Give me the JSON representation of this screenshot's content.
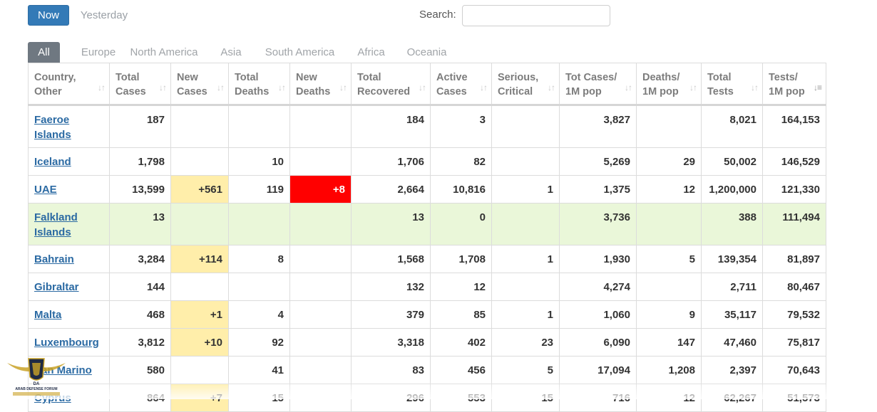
{
  "toolbar": {
    "now_label": "Now",
    "yesterday_label": "Yesterday",
    "search_label": "Search:",
    "search_value": ""
  },
  "tabs": [
    {
      "label": "All",
      "active": true
    },
    {
      "label": "Europe"
    },
    {
      "label": "North America"
    },
    {
      "label": "Asia"
    },
    {
      "label": "South America"
    },
    {
      "label": "Africa"
    },
    {
      "label": "Oceania"
    }
  ],
  "table": {
    "columns": [
      [
        "Country,",
        "Other"
      ],
      [
        "Total",
        "Cases"
      ],
      [
        "New",
        "Cases"
      ],
      [
        "Total",
        "Deaths"
      ],
      [
        "New",
        "Deaths"
      ],
      [
        "Total",
        "Recovered"
      ],
      [
        "Active",
        "Cases"
      ],
      [
        "Serious,",
        "Critical"
      ],
      [
        "Tot Cases/",
        "1M pop"
      ],
      [
        "Deaths/",
        "1M pop"
      ],
      [
        "Total",
        "Tests"
      ],
      [
        "Tests/",
        "1M pop"
      ]
    ],
    "sorted_column": 11,
    "rows": [
      {
        "country": "Faeroe Islands",
        "total_cases": "187",
        "new_cases": "",
        "total_deaths": "",
        "new_deaths": "",
        "total_recovered": "184",
        "active_cases": "3",
        "serious_critical": "",
        "tot_cases_per_1m": "3,827",
        "deaths_per_1m": "",
        "total_tests": "8,021",
        "tests_per_1m": "164,153"
      },
      {
        "country": "Iceland",
        "total_cases": "1,798",
        "new_cases": "",
        "total_deaths": "10",
        "new_deaths": "",
        "total_recovered": "1,706",
        "active_cases": "82",
        "serious_critical": "",
        "tot_cases_per_1m": "5,269",
        "deaths_per_1m": "29",
        "total_tests": "50,002",
        "tests_per_1m": "146,529"
      },
      {
        "country": "UAE",
        "total_cases": "13,599",
        "new_cases": "+561",
        "total_deaths": "119",
        "new_deaths": "+8",
        "total_recovered": "2,664",
        "active_cases": "10,816",
        "serious_critical": "1",
        "tot_cases_per_1m": "1,375",
        "deaths_per_1m": "12",
        "total_tests": "1,200,000",
        "tests_per_1m": "121,330"
      },
      {
        "country": "Falkland Islands",
        "highlight": true,
        "total_cases": "13",
        "new_cases": "",
        "total_deaths": "",
        "new_deaths": "",
        "total_recovered": "13",
        "active_cases": "0",
        "serious_critical": "",
        "tot_cases_per_1m": "3,736",
        "deaths_per_1m": "",
        "total_tests": "388",
        "tests_per_1m": "111,494"
      },
      {
        "country": "Bahrain",
        "total_cases": "3,284",
        "new_cases": "+114",
        "total_deaths": "8",
        "new_deaths": "",
        "total_recovered": "1,568",
        "active_cases": "1,708",
        "serious_critical": "1",
        "tot_cases_per_1m": "1,930",
        "deaths_per_1m": "5",
        "total_tests": "139,354",
        "tests_per_1m": "81,897"
      },
      {
        "country": "Gibraltar",
        "total_cases": "144",
        "new_cases": "",
        "total_deaths": "",
        "new_deaths": "",
        "total_recovered": "132",
        "active_cases": "12",
        "serious_critical": "",
        "tot_cases_per_1m": "4,274",
        "deaths_per_1m": "",
        "total_tests": "2,711",
        "tests_per_1m": "80,467"
      },
      {
        "country": "Malta",
        "total_cases": "468",
        "new_cases": "+1",
        "total_deaths": "4",
        "new_deaths": "",
        "total_recovered": "379",
        "active_cases": "85",
        "serious_critical": "1",
        "tot_cases_per_1m": "1,060",
        "deaths_per_1m": "9",
        "total_tests": "35,117",
        "tests_per_1m": "79,532"
      },
      {
        "country": "Luxembourg",
        "total_cases": "3,812",
        "new_cases": "+10",
        "total_deaths": "92",
        "new_deaths": "",
        "total_recovered": "3,318",
        "active_cases": "402",
        "serious_critical": "23",
        "tot_cases_per_1m": "6,090",
        "deaths_per_1m": "147",
        "total_tests": "47,460",
        "tests_per_1m": "75,817"
      },
      {
        "country": "San Marino",
        "total_cases": "580",
        "new_cases": "",
        "total_deaths": "41",
        "new_deaths": "",
        "total_recovered": "83",
        "active_cases": "456",
        "serious_critical": "5",
        "tot_cases_per_1m": "17,094",
        "deaths_per_1m": "1,208",
        "total_tests": "2,397",
        "tests_per_1m": "70,643"
      },
      {
        "country": "Cyprus",
        "total_cases": "864",
        "new_cases": "+7",
        "total_deaths": "15",
        "new_deaths": "",
        "total_recovered": "296",
        "active_cases": "553",
        "serious_critical": "15",
        "tot_cases_per_1m": "716",
        "deaths_per_1m": "12",
        "total_tests": "62,267",
        "tests_per_1m": "51,573"
      }
    ]
  },
  "watermark": {
    "text_top": "DA",
    "text_bottom": "ARAB DEFENSE FORUM"
  },
  "colors": {
    "primary": "#337ab7",
    "link": "#2b6aa3",
    "tab_active": "#6f7881",
    "new_cases_bg": "#ffeeaa",
    "new_deaths_bg": "#ff0000",
    "highlight_row_bg": "#eaf7d9"
  }
}
